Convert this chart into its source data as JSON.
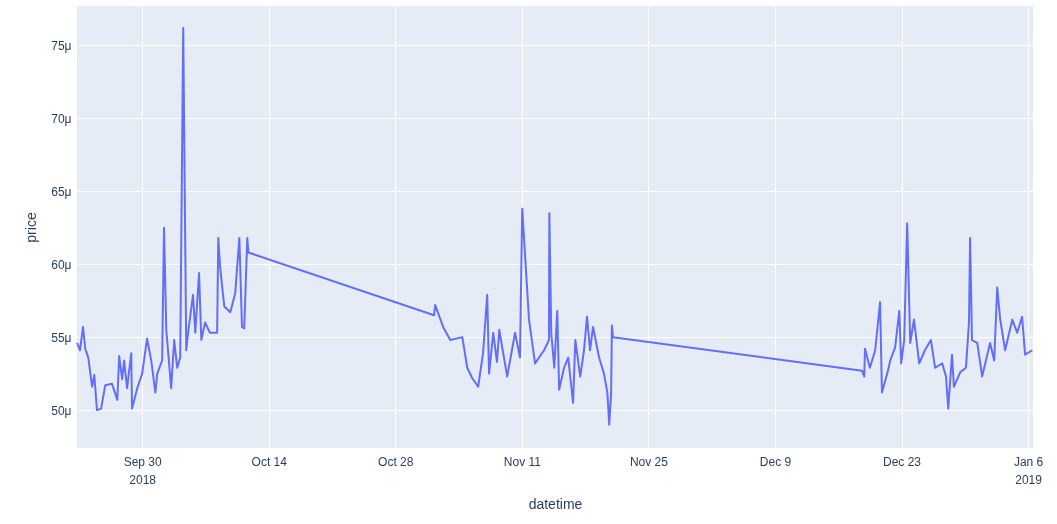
{
  "chart_data": {
    "type": "line",
    "xlabel": "datetime",
    "ylabel": "price",
    "grid": true,
    "xlim": [
      "2018-09-22T19:00",
      "2019-01-06T13:00"
    ],
    "xticks": [
      {
        "value": "2018-09-30",
        "label": "Sep 30\n2018"
      },
      {
        "value": "2018-10-14",
        "label": "Oct 14"
      },
      {
        "value": "2018-10-28",
        "label": "Oct 28"
      },
      {
        "value": "2018-11-11",
        "label": "Nov 11"
      },
      {
        "value": "2018-11-25",
        "label": "Nov 25"
      },
      {
        "value": "2018-12-09",
        "label": "Dec 9"
      },
      {
        "value": "2018-12-23",
        "label": "Dec 23"
      },
      {
        "value": "2019-01-06",
        "label": "Jan 6\n2019"
      }
    ],
    "ylim": [
      47.4,
      77.7
    ],
    "yticks": [
      {
        "value": 50,
        "label": "50μ"
      },
      {
        "value": 55,
        "label": "55μ"
      },
      {
        "value": 60,
        "label": "60μ"
      },
      {
        "value": 65,
        "label": "65μ"
      },
      {
        "value": 70,
        "label": "70μ"
      },
      {
        "value": 75,
        "label": "75μ"
      }
    ],
    "x": [
      "2018-09-22T19:00",
      "2018-09-23T03:00",
      "2018-09-23T11:00",
      "2018-09-23T17:00",
      "2018-09-24T01:00",
      "2018-09-24T11:00",
      "2018-09-24T17:00",
      "2018-09-25T00:00",
      "2018-09-25T11:00",
      "2018-09-25T22:00",
      "2018-09-26T16:00",
      "2018-09-27T06:00",
      "2018-09-27T11:00",
      "2018-09-27T19:00",
      "2018-09-28T00:00",
      "2018-09-28T08:00",
      "2018-09-28T19:00",
      "2018-09-28T21:00",
      "2018-09-29T11:00",
      "2018-09-30T00:00",
      "2018-09-30T13:00",
      "2018-10-01T00:00",
      "2018-10-01T11:00",
      "2018-10-01T16:00",
      "2018-10-02T05:00",
      "2018-10-02T10:00",
      "2018-10-02T16:00",
      "2018-10-03T05:00",
      "2018-10-03T13:00",
      "2018-10-03T21:00",
      "2018-10-04T05:00",
      "2018-10-04T13:00",
      "2018-10-04T21:00",
      "2018-10-05T02:00",
      "2018-10-05T15:00",
      "2018-10-05T21:00",
      "2018-10-06T07:00",
      "2018-10-06T13:00",
      "2018-10-06T23:00",
      "2018-10-07T12:00",
      "2018-10-08T07:00",
      "2018-10-08T10:00",
      "2018-10-08T15:00",
      "2018-10-09T02:00",
      "2018-10-09T18:00",
      "2018-10-10T07:00",
      "2018-10-10T18:00",
      "2018-10-11T01:00",
      "2018-10-11T07:00",
      "2018-10-11T15:00",
      "2018-10-11T18:00",
      "2018-11-01T07:00",
      "2018-11-01T10:00",
      "2018-11-02T07:00",
      "2018-11-03T02:00",
      "2018-11-04T10:00",
      "2018-11-04T23:00",
      "2018-11-05T12:00",
      "2018-11-06T04:00",
      "2018-11-06T17:00",
      "2018-11-07T04:00",
      "2018-11-07T09:00",
      "2018-11-07T20:00",
      "2018-11-08T06:00",
      "2018-11-08T12:00",
      "2018-11-09T09:00",
      "2018-11-10T06:00",
      "2018-11-10T19:00",
      "2018-11-11T01:00",
      "2018-11-11T19:00",
      "2018-11-12T11:00",
      "2018-11-13T11:00",
      "2018-11-14T00:00",
      "2018-11-14T01:00",
      "2018-11-14T06:00",
      "2018-11-14T14:00",
      "2018-11-14T22:00",
      "2018-11-15T03:00",
      "2018-11-15T16:00",
      "2018-11-16T03:00",
      "2018-11-16T16:00",
      "2018-11-16T22:00",
      "2018-11-17T11:00",
      "2018-11-17T21:00",
      "2018-11-18T05:00",
      "2018-11-18T13:00",
      "2018-11-18T21:00",
      "2018-11-19T13:00",
      "2018-11-20T02:00",
      "2018-11-20T11:00",
      "2018-11-20T16:00",
      "2018-11-20T21:00",
      "2018-11-20T23:00",
      "2018-11-21T02:00",
      "2018-12-18T15:00",
      "2018-12-18T21:00",
      "2018-12-18T23:00",
      "2018-12-19T12:00",
      "2018-12-20T02:00",
      "2018-12-20T15:00",
      "2018-12-20T20:00",
      "2018-12-21T10:00",
      "2018-12-21T18:00",
      "2018-12-22T07:00",
      "2018-12-22T18:00",
      "2018-12-22T23:00",
      "2018-12-23T07:00",
      "2018-12-23T15:00",
      "2018-12-23T23:00",
      "2018-12-24T09:00",
      "2018-12-24T23:00",
      "2018-12-25T14:00",
      "2018-12-26T06:00",
      "2018-12-26T17:00",
      "2018-12-27T12:00",
      "2018-12-27T22:00",
      "2018-12-28T04:00",
      "2018-12-28T14:00",
      "2018-12-28T19:00",
      "2018-12-29T12:00",
      "2018-12-30T03:00",
      "2018-12-30T11:00",
      "2018-12-30T14:00",
      "2018-12-30T19:00",
      "2018-12-31T09:00",
      "2018-12-31T22:00",
      "2019-01-01T19:00",
      "2019-01-02T06:00",
      "2019-01-02T14:00",
      "2019-01-02T22:00",
      "2019-01-03T11:00",
      "2019-01-04T06:00",
      "2019-01-04T19:00",
      "2019-01-05T08:00",
      "2019-01-05T16:00",
      "2019-01-06T11:00"
    ],
    "series": [
      {
        "color": "#636efa",
        "values": [
          54.6,
          54.1,
          55.7,
          54.2,
          53.6,
          51.6,
          52.4,
          50.0,
          50.1,
          51.7,
          51.8,
          50.7,
          53.7,
          52.1,
          53.4,
          51.5,
          53.9,
          50.1,
          51.5,
          52.5,
          54.9,
          53.4,
          51.2,
          52.5,
          53.4,
          62.5,
          55.5,
          51.5,
          54.8,
          52.9,
          53.6,
          76.2,
          54.1,
          55.3,
          57.9,
          55.3,
          59.4,
          54.8,
          56.0,
          55.3,
          55.3,
          61.8,
          59.8,
          57.1,
          56.7,
          58.0,
          61.8,
          55.7,
          55.6,
          61.8,
          60.8,
          56.5,
          57.2,
          55.7,
          54.8,
          55.0,
          52.9,
          52.2,
          51.6,
          53.9,
          57.9,
          52.5,
          55.3,
          53.3,
          55.5,
          52.3,
          55.3,
          53.6,
          63.8,
          56.2,
          53.2,
          54.1,
          54.8,
          63.5,
          55.3,
          52.9,
          56.8,
          51.4,
          52.9,
          53.6,
          50.5,
          54.8,
          52.3,
          54.1,
          56.4,
          54.1,
          55.7,
          53.6,
          52.5,
          51.2,
          49.0,
          51.2,
          55.8,
          55.0,
          52.7,
          52.3,
          54.2,
          52.9,
          54.1,
          57.4,
          51.2,
          52.5,
          53.4,
          54.3,
          56.8,
          53.2,
          54.8,
          62.8,
          54.6,
          56.2,
          53.2,
          54.1,
          54.8,
          52.9,
          53.2,
          52.3,
          50.1,
          53.8,
          51.6,
          52.6,
          52.9,
          56.0,
          61.8,
          54.8,
          54.6,
          52.3,
          54.6,
          53.4,
          58.4,
          56.2,
          54.1,
          56.2,
          55.3,
          56.4,
          53.8,
          54.1
        ]
      }
    ]
  }
}
